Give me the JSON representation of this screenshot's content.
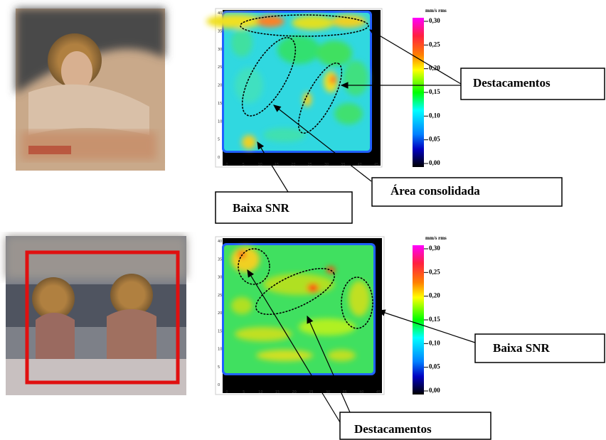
{
  "panels": [
    {
      "heatmap": {
        "yticks": [
          40,
          35,
          30,
          25,
          20,
          15,
          10,
          5,
          0
        ],
        "xticks": [
          0,
          5,
          10,
          15,
          20,
          25,
          30,
          35,
          40,
          45
        ]
      },
      "colorbar": {
        "unit": "mm/s rms",
        "ticks": [
          "0,30",
          "0,25",
          "0,20",
          "0,15",
          "0,10",
          "0,05",
          "0,00"
        ]
      },
      "callouts": [
        "Destacamentos",
        "Área consolidada",
        "Baixa SNR"
      ]
    },
    {
      "heatmap": {
        "yticks": [
          40,
          35,
          30,
          25,
          20,
          15,
          10,
          5,
          0
        ],
        "xticks": [
          0,
          5,
          10,
          15,
          20,
          25,
          30,
          35,
          40,
          45
        ]
      },
      "colorbar": {
        "unit": "mm/s rms",
        "ticks": [
          "0,30",
          "0,25",
          "0,20",
          "0,15",
          "0,10",
          "0,05",
          "0,00"
        ]
      },
      "callouts": [
        "Baixa SNR",
        "Destacamentos"
      ]
    }
  ]
}
